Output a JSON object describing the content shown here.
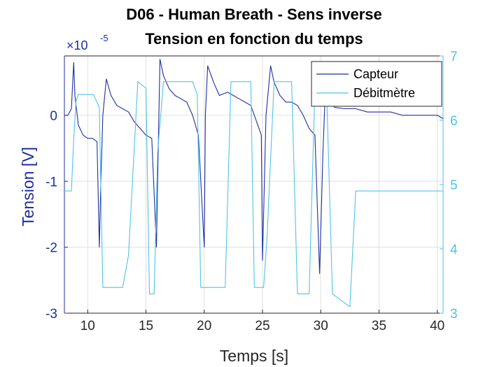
{
  "chart_data": {
    "type": "line",
    "title": "D06 - Human Breath - Sens inverse",
    "subtitle": "Tension en fonction du temps",
    "xlabel": "Temps [s]",
    "ylabel_left": "Tension [V]",
    "ylabel_right": "",
    "left_scale_multiplier": {
      "base": "×10",
      "exponent": "-5"
    },
    "xlim": [
      8,
      40.5
    ],
    "ylim_left": [
      -3,
      0.9
    ],
    "ylim_right": [
      3,
      7
    ],
    "xticks": [
      10,
      15,
      20,
      25,
      30,
      35,
      40
    ],
    "yticks_left": [
      0,
      -1,
      -2,
      -3
    ],
    "yticks_right": [
      3,
      4,
      5,
      6,
      7
    ],
    "grid": true,
    "legend_position": "top-right",
    "colors": {
      "capteur": "#1f2ea0",
      "debitmetre": "#4fc3e6",
      "left_axis": "#1f2ea0",
      "right_axis": "#4fc3e6"
    },
    "series": [
      {
        "name": "Capteur",
        "axis": "left",
        "x": [
          8.0,
          8.3,
          8.6,
          8.8,
          8.9,
          9.2,
          9.6,
          10.0,
          10.4,
          10.8,
          11.0,
          11.1,
          11.3,
          11.6,
          12.0,
          12.5,
          13.0,
          13.5,
          14.0,
          14.5,
          15.0,
          15.5,
          15.9,
          16.0,
          16.2,
          16.5,
          17.0,
          17.5,
          18.0,
          18.5,
          19.0,
          19.5,
          20.0,
          20.1,
          20.3,
          20.8,
          21.3,
          22.0,
          22.5,
          23.0,
          23.5,
          24.0,
          24.5,
          24.9,
          25.0,
          25.3,
          25.7,
          26.0,
          26.5,
          27.0,
          27.5,
          28.0,
          28.5,
          29.0,
          29.5,
          29.9,
          30.2,
          30.5,
          30.6,
          30.8,
          31.2,
          32.0,
          33.0,
          34.0,
          35.0,
          36.0,
          37.0,
          38.0,
          39.0,
          40.0,
          40.5
        ],
        "y": [
          0.0,
          0.0,
          0.1,
          0.8,
          0.3,
          -0.15,
          -0.3,
          -0.35,
          -0.35,
          -0.4,
          -2.0,
          -1.2,
          0.0,
          0.55,
          0.3,
          0.15,
          0.1,
          0.05,
          -0.1,
          -0.2,
          -0.3,
          -0.35,
          -2.0,
          -1.0,
          0.85,
          0.6,
          0.4,
          0.3,
          0.25,
          0.2,
          0.0,
          -0.3,
          -2.0,
          0.0,
          0.75,
          0.5,
          0.3,
          0.35,
          0.3,
          0.25,
          0.2,
          0.15,
          -0.1,
          -0.3,
          -2.2,
          0.0,
          0.75,
          0.5,
          0.3,
          0.2,
          0.2,
          0.15,
          0.0,
          -0.2,
          -0.3,
          -2.4,
          -0.5,
          0.8,
          0.4,
          0.2,
          0.12,
          0.1,
          0.1,
          0.05,
          0.05,
          0.05,
          0.0,
          0.0,
          0.0,
          0.0,
          -0.05
        ]
      },
      {
        "name": "Débitmètre",
        "axis": "right",
        "x": [
          8.0,
          8.6,
          8.8,
          9.0,
          9.2,
          10.5,
          11.0,
          11.3,
          13.0,
          13.5,
          14.3,
          15.0,
          15.3,
          15.7,
          16.0,
          16.5,
          19.0,
          19.4,
          19.7,
          20.2,
          20.5,
          21.8,
          22.3,
          23.3,
          24.0,
          24.3,
          24.8,
          25.1,
          25.4,
          26.0,
          27.5,
          28.0,
          28.5,
          29.0,
          29.5,
          30.0,
          30.5,
          31.0,
          32.5,
          33.0,
          40.5
        ],
        "y": [
          4.9,
          4.9,
          5.7,
          6.3,
          6.4,
          6.4,
          6.2,
          3.4,
          3.4,
          3.9,
          6.6,
          6.5,
          3.3,
          3.3,
          5.5,
          6.6,
          6.6,
          6.4,
          3.4,
          3.4,
          3.4,
          3.4,
          6.6,
          6.6,
          6.6,
          3.4,
          3.4,
          3.4,
          4.2,
          6.6,
          6.6,
          3.3,
          3.3,
          3.3,
          6.5,
          6.6,
          6.5,
          3.3,
          3.1,
          4.9,
          4.9
        ]
      }
    ]
  }
}
